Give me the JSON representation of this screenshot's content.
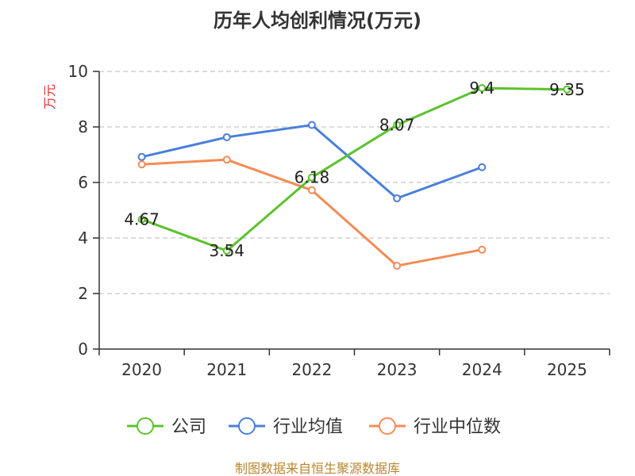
{
  "chart_data": {
    "type": "line",
    "title": "历年人均创利情况(万元)",
    "ylabel": "万元",
    "xlabel": "",
    "categories": [
      "2020",
      "2021",
      "2022",
      "2023",
      "2024",
      "2025"
    ],
    "ylim": [
      0,
      10
    ],
    "yticks": [
      "0",
      "2",
      "4",
      "6",
      "8",
      "10"
    ],
    "grid": true,
    "legend_position": "bottom",
    "series": [
      {
        "name": "公司",
        "color": "#5cc22e",
        "values": [
          4.67,
          3.54,
          6.18,
          8.07,
          9.4,
          9.35
        ],
        "labels": [
          "4.67",
          "3.54",
          "6.18",
          "8.07",
          "9.4",
          "9.35"
        ]
      },
      {
        "name": "行业均值",
        "color": "#4a7fd9",
        "values": [
          6.92,
          7.63,
          8.07,
          5.43,
          6.55,
          null
        ]
      },
      {
        "name": "行业中位数",
        "color": "#f28c57",
        "values": [
          6.65,
          6.82,
          5.72,
          3.0,
          3.58,
          null
        ]
      }
    ]
  },
  "footer": {
    "source": "制图数据来自恒生聚源数据库"
  }
}
